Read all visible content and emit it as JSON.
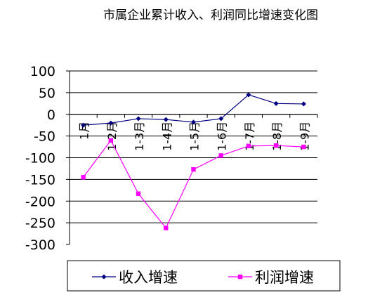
{
  "chart_data": {
    "type": "line",
    "title": "市属企业累计收入、利润同比增速变化图",
    "categories": [
      "1月",
      "1-2月",
      "1-3月",
      "1-4月",
      "1-5月",
      "1-6月",
      "1-7月",
      "1-8月",
      "1-9月"
    ],
    "series": [
      {
        "name": "收入增速",
        "color": "#000080",
        "marker": "diamond",
        "values": [
          -25,
          -20,
          -10,
          -12,
          -18,
          -10,
          45,
          25,
          24
        ]
      },
      {
        "name": "利润增速",
        "color": "#ff00ff",
        "marker": "square",
        "values": [
          -145,
          -60,
          -183,
          -262,
          -127,
          -95,
          -73,
          -72,
          -75
        ]
      }
    ],
    "ylim": [
      -300,
      100
    ],
    "yticks": [
      100,
      50,
      0,
      -50,
      -100,
      -150,
      -200,
      -250,
      -300
    ],
    "xlabel": "",
    "ylabel": "",
    "grid": true,
    "legend": "bottom"
  }
}
